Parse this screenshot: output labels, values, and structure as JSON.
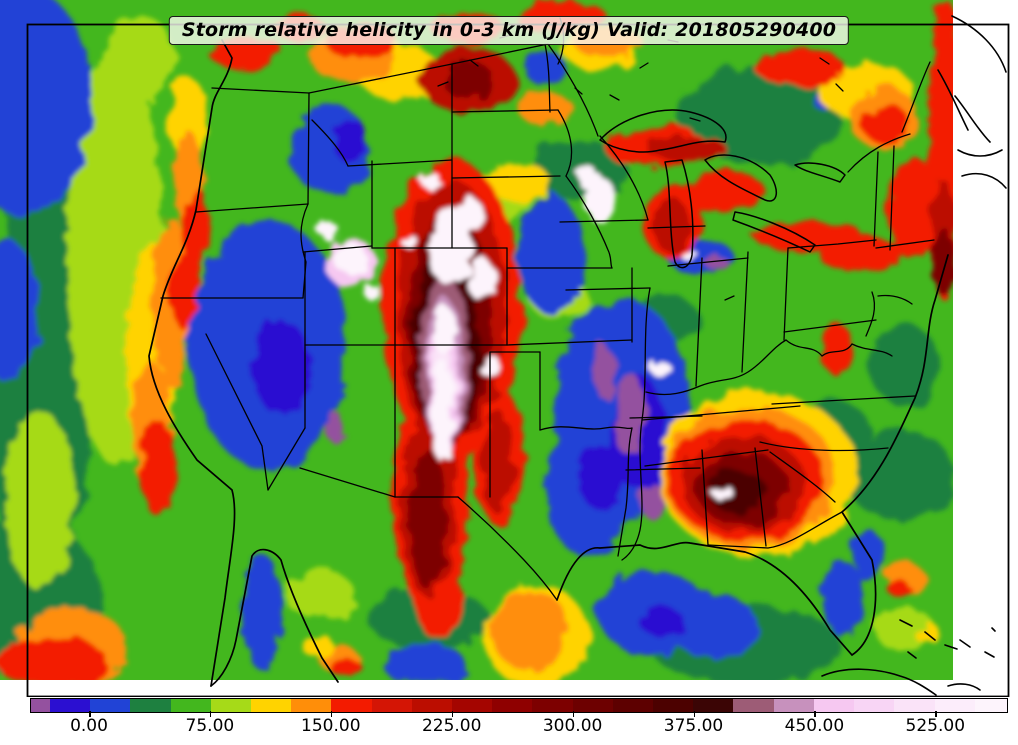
{
  "title": {
    "text": "Storm relative helicity in 0-3 km (J/kg) Valid: 201805290400"
  },
  "chart_data": {
    "type": "heatmap",
    "subtype": "filled-contour-geographic-map",
    "title": "Storm relative helicity in 0-3 km (J/kg) Valid: 201805290400",
    "variable": "Storm relative helicity in 0-3 km",
    "units": "J/kg",
    "valid_time": "201805290400",
    "region": "Continental United States with adjacent Canada, Mexico and oceans",
    "projection": "Lambert-conformal style CONUS view, state and coastline borders in black",
    "colorbar": {
      "orientation": "horizontal",
      "position": "bottom",
      "level_step": 25,
      "tick_labels": [
        "0.00",
        "75.00",
        "150.00",
        "225.00",
        "300.00",
        "375.00",
        "450.00",
        "525.00"
      ],
      "tick_values": [
        0,
        75,
        150,
        225,
        300,
        375,
        450,
        525
      ],
      "colors": [
        "#94519f",
        "#2b0fd1",
        "#2143d6",
        "#1e8040",
        "#43b71e",
        "#a6da18",
        "#ffd300",
        "#ff8e09",
        "#f31b00",
        "#d41505",
        "#bb0d00",
        "#a40500",
        "#8f0000",
        "#7d0000",
        "#6d0000",
        "#5d0000",
        "#4c0100",
        "#3b0505",
        "#9d5c76",
        "#c791bd",
        "#f6c8f1",
        "#f8d5f5",
        "#fae3f8",
        "#fcedfb",
        "#fdf4fc"
      ]
    },
    "notable_features": [
      {
        "area": "Colorado / Nebraska high plains",
        "value": "> 525 (white/pale pink maximum, surrounded by dark red > 300)"
      },
      {
        "area": "Alabama / Georgia",
        "value": "250-450 dark red blob with small > 500 white core"
      },
      {
        "area": "Texas panhandle to central Texas",
        "value": "175-300 red band"
      },
      {
        "area": "Lake Superior / Michigan and Lake Erie corridor",
        "value": "150-250 red bands"
      },
      {
        "area": "Pacific Northwest coastline",
        "value": "100-200 yellow-orange-red coastal strip"
      },
      {
        "area": "Iowa / Missouri and Great Basin",
        "value": "-25 to 25 blue with purple < -25 patches"
      },
      {
        "area": "Gulf off Texas coast",
        "value": "100-150 orange maximum"
      },
      {
        "area": "Northeast US right edge",
        "value": "175-300 red column"
      }
    ]
  }
}
